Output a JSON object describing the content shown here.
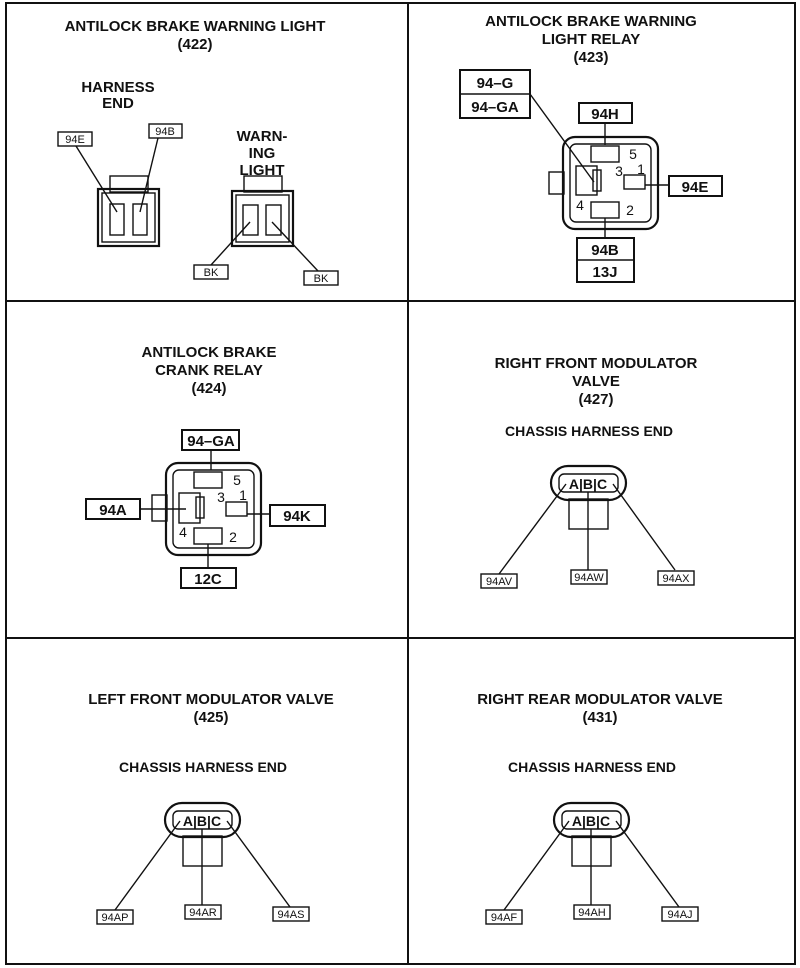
{
  "panels": {
    "p422": {
      "title_line1": "ANTILOCK BRAKE WARNING LIGHT",
      "title_num": "(422)",
      "harness_line1": "HARNESS",
      "harness_line2": "END",
      "warn_line1": "WARN-",
      "warn_line2": "ING",
      "warn_line3": "LIGHT",
      "wire_94e": "94E",
      "wire_94b": "94B",
      "wire_bk1": "BK",
      "wire_bk2": "BK"
    },
    "p423": {
      "title_line1": "ANTILOCK BRAKE WARNING",
      "title_line2": "LIGHT RELAY",
      "title_num": "(423)",
      "wire_94g": "94–G",
      "wire_94ga": "94–GA",
      "wire_94h": "94H",
      "wire_94e": "94E",
      "wire_94b": "94B",
      "wire_13j": "13J",
      "pin5": "5",
      "pin3": "3",
      "pin1": "1",
      "pin4": "4",
      "pin2": "2"
    },
    "p424": {
      "title_line1": "ANTILOCK BRAKE",
      "title_line2": "CRANK RELAY",
      "title_num": "(424)",
      "wire_94ga": "94–GA",
      "wire_94a": "94A",
      "wire_94k": "94K",
      "wire_12c": "12C",
      "pin5": "5",
      "pin3": "3",
      "pin1": "1",
      "pin4": "4",
      "pin2": "2"
    },
    "p427": {
      "title_line1": "RIGHT FRONT MODULATOR",
      "title_line2": "VALVE",
      "title_num": "(427)",
      "sub": "CHASSIS HARNESS END",
      "pins": "A|B|C",
      "wire_a": "94AV",
      "wire_b": "94AW",
      "wire_c": "94AX"
    },
    "p425": {
      "title_line1": "LEFT FRONT MODULATOR VALVE",
      "title_num": "(425)",
      "sub": "CHASSIS HARNESS END",
      "pins": "A|B|C",
      "wire_a": "94AP",
      "wire_b": "94AR",
      "wire_c": "94AS"
    },
    "p431": {
      "title_line1": "RIGHT REAR MODULATOR VALVE",
      "title_num": "(431)",
      "sub": "CHASSIS HARNESS END",
      "pins": "A|B|C",
      "wire_a": "94AF",
      "wire_b": "94AH",
      "wire_c": "94AJ"
    }
  }
}
